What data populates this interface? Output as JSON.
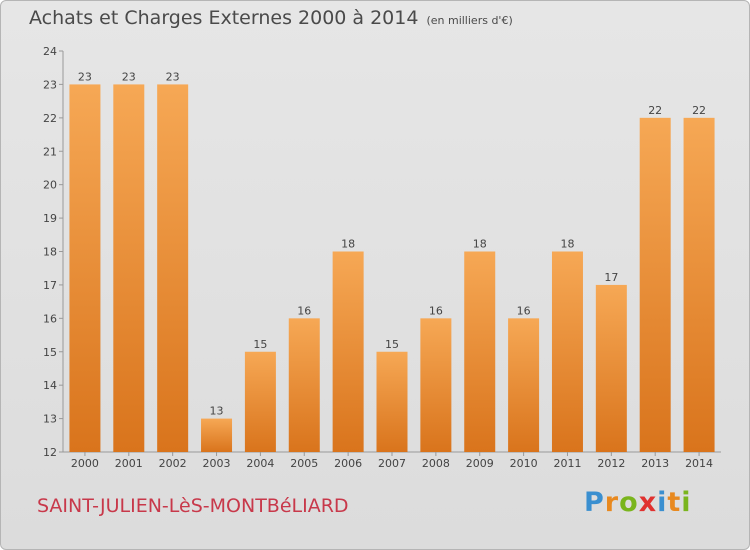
{
  "title": "Achats et Charges Externes 2000 à 2014",
  "unit": "(en milliers d'€)",
  "commune": "SAINT-JULIEN-LèS-MONTBéLIARD",
  "logo": {
    "letters": [
      {
        "ch": "P",
        "color": "#3a8fd0"
      },
      {
        "ch": "r",
        "color": "#e8891f"
      },
      {
        "ch": "o",
        "color": "#7ab51d"
      },
      {
        "ch": "x",
        "color": "#e0312f"
      },
      {
        "ch": "i",
        "color": "#3a8fd0"
      },
      {
        "ch": "t",
        "color": "#e8891f"
      },
      {
        "ch": "i",
        "color": "#7ab51d"
      }
    ]
  },
  "colors": {
    "bar_top": "#f6a855",
    "bar_bottom": "#d9741c",
    "text": "#444444",
    "grid": "#cccccc"
  },
  "chart_data": {
    "type": "bar",
    "categories": [
      "2000",
      "2001",
      "2002",
      "2003",
      "2004",
      "2005",
      "2006",
      "2007",
      "2008",
      "2009",
      "2010",
      "2011",
      "2012",
      "2013",
      "2014"
    ],
    "values": [
      23,
      23,
      23,
      13,
      15,
      16,
      18,
      15,
      16,
      18,
      16,
      18,
      17,
      22,
      22
    ],
    "ylim": [
      12,
      24
    ],
    "yticks": [
      12,
      13,
      14,
      15,
      16,
      17,
      18,
      19,
      20,
      21,
      22,
      23,
      24
    ],
    "grid": false
  }
}
